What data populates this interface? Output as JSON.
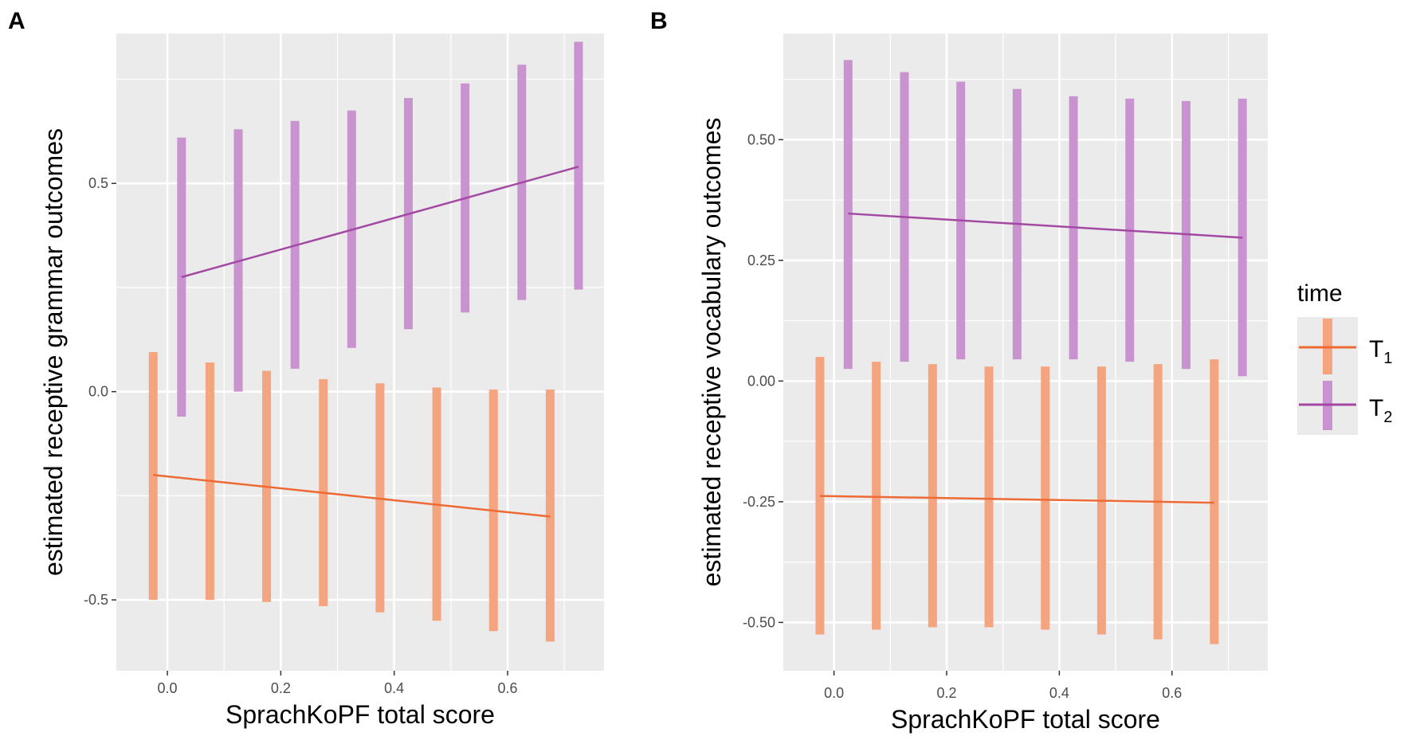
{
  "chart_data": [
    {
      "type": "line",
      "panel": "A",
      "xlabel": "SprachKoPF total score",
      "ylabel": "estimated receptive grammar outcomes",
      "xlim": [
        -0.09,
        0.77
      ],
      "ylim": [
        -0.67,
        0.86
      ],
      "xticks": [
        0.0,
        0.2,
        0.4,
        0.6
      ],
      "xtick_labels": [
        "0.0",
        "0.2",
        "0.4",
        "0.6"
      ],
      "yticks": [
        -0.5,
        0.0,
        0.5
      ],
      "ytick_labels": [
        "-0.5",
        "0.0",
        "0.5"
      ],
      "series": [
        {
          "name": "T1",
          "color": "#ee6a35",
          "band_color": "#f4a47f",
          "x": [
            -0.025,
            0.075,
            0.175,
            0.275,
            0.375,
            0.475,
            0.575,
            0.675
          ],
          "lower": [
            -0.5,
            -0.5,
            -0.505,
            -0.515,
            -0.53,
            -0.55,
            -0.575,
            -0.6
          ],
          "upper": [
            0.095,
            0.07,
            0.05,
            0.03,
            0.02,
            0.01,
            0.005,
            0.005
          ],
          "line": [
            [
              -0.025,
              -0.2
            ],
            [
              0.675,
              -0.3
            ]
          ]
        },
        {
          "name": "T2",
          "color": "#a349a4",
          "band_color": "#c993cf",
          "x": [
            0.025,
            0.125,
            0.225,
            0.325,
            0.425,
            0.525,
            0.625,
            0.725
          ],
          "lower": [
            -0.06,
            0.0,
            0.055,
            0.105,
            0.15,
            0.19,
            0.22,
            0.245
          ],
          "upper": [
            0.61,
            0.63,
            0.65,
            0.675,
            0.705,
            0.74,
            0.785,
            0.84
          ],
          "line": [
            [
              0.025,
              0.275
            ],
            [
              0.725,
              0.54
            ]
          ]
        }
      ]
    },
    {
      "type": "line",
      "panel": "B",
      "xlabel": "SprachKoPF total score",
      "ylabel": "estimated receptive vocabulary outcomes",
      "xlim": [
        -0.09,
        0.77
      ],
      "ylim": [
        -0.6,
        0.72
      ],
      "xticks": [
        0.0,
        0.2,
        0.4,
        0.6
      ],
      "xtick_labels": [
        "0.0",
        "0.2",
        "0.4",
        "0.6"
      ],
      "yticks": [
        -0.5,
        -0.25,
        0.0,
        0.25,
        0.5
      ],
      "ytick_labels": [
        "-0.50",
        "-0.25",
        "0.00",
        "0.25",
        "0.50"
      ],
      "series": [
        {
          "name": "T1",
          "color": "#ee6a35",
          "band_color": "#f4a47f",
          "x": [
            -0.025,
            0.075,
            0.175,
            0.275,
            0.375,
            0.475,
            0.575,
            0.675
          ],
          "lower": [
            -0.525,
            -0.515,
            -0.51,
            -0.51,
            -0.515,
            -0.525,
            -0.535,
            -0.545
          ],
          "upper": [
            0.05,
            0.04,
            0.035,
            0.03,
            0.03,
            0.03,
            0.035,
            0.045
          ],
          "line": [
            [
              -0.025,
              -0.238
            ],
            [
              0.675,
              -0.252
            ]
          ]
        },
        {
          "name": "T2",
          "color": "#a349a4",
          "band_color": "#c993cf",
          "x": [
            0.025,
            0.125,
            0.225,
            0.325,
            0.425,
            0.525,
            0.625,
            0.725
          ],
          "lower": [
            0.025,
            0.04,
            0.045,
            0.045,
            0.045,
            0.04,
            0.025,
            0.01
          ],
          "upper": [
            0.665,
            0.64,
            0.62,
            0.605,
            0.59,
            0.585,
            0.58,
            0.585
          ],
          "line": [
            [
              0.025,
              0.347
            ],
            [
              0.725,
              0.297
            ]
          ]
        }
      ]
    }
  ],
  "legend": {
    "title": "time",
    "items": [
      {
        "label": "T",
        "sub": "1",
        "color": "#ee6a35",
        "band_color": "#f4a47f"
      },
      {
        "label": "T",
        "sub": "2",
        "color": "#a349a4",
        "band_color": "#c993cf"
      }
    ]
  },
  "panel_tags": [
    "A",
    "B"
  ]
}
